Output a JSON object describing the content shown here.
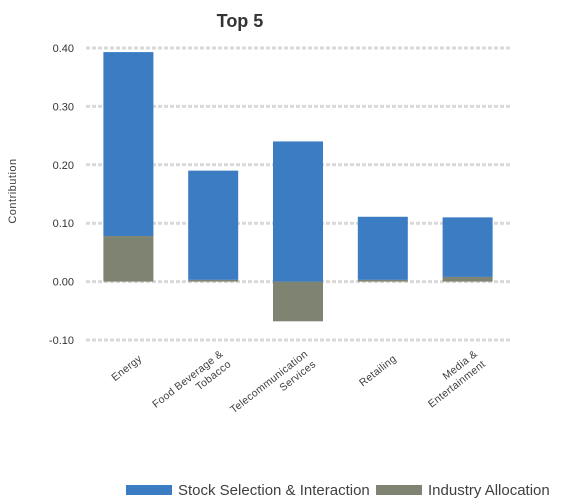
{
  "chart_data": {
    "type": "bar",
    "stacked": true,
    "title": "Top 5",
    "xlabel": "",
    "ylabel": "Contribution",
    "ylim": [
      -0.1,
      0.4
    ],
    "yticks": [
      "-0.10",
      "0.00",
      "0.10",
      "0.20",
      "0.30",
      "0.40"
    ],
    "ytick_values": [
      -0.1,
      0.0,
      0.1,
      0.2,
      0.3,
      0.4
    ],
    "grid": true,
    "legend_position": "bottom",
    "categories": [
      [
        "Energy"
      ],
      [
        "Food Beverage &",
        "Tobacco"
      ],
      [
        "Telecommunication",
        "Services"
      ],
      [
        "Retailing"
      ],
      [
        "Media &",
        "Entertainment"
      ]
    ],
    "series": [
      {
        "name": "Stock Selection & Interaction",
        "color": "#3b7cc2",
        "values": [
          0.315,
          0.187,
          0.24,
          0.108,
          0.102
        ]
      },
      {
        "name": "Industry Allocation",
        "color": "#7e8471",
        "values": [
          0.078,
          0.003,
          -0.068,
          0.003,
          0.008
        ]
      }
    ]
  }
}
